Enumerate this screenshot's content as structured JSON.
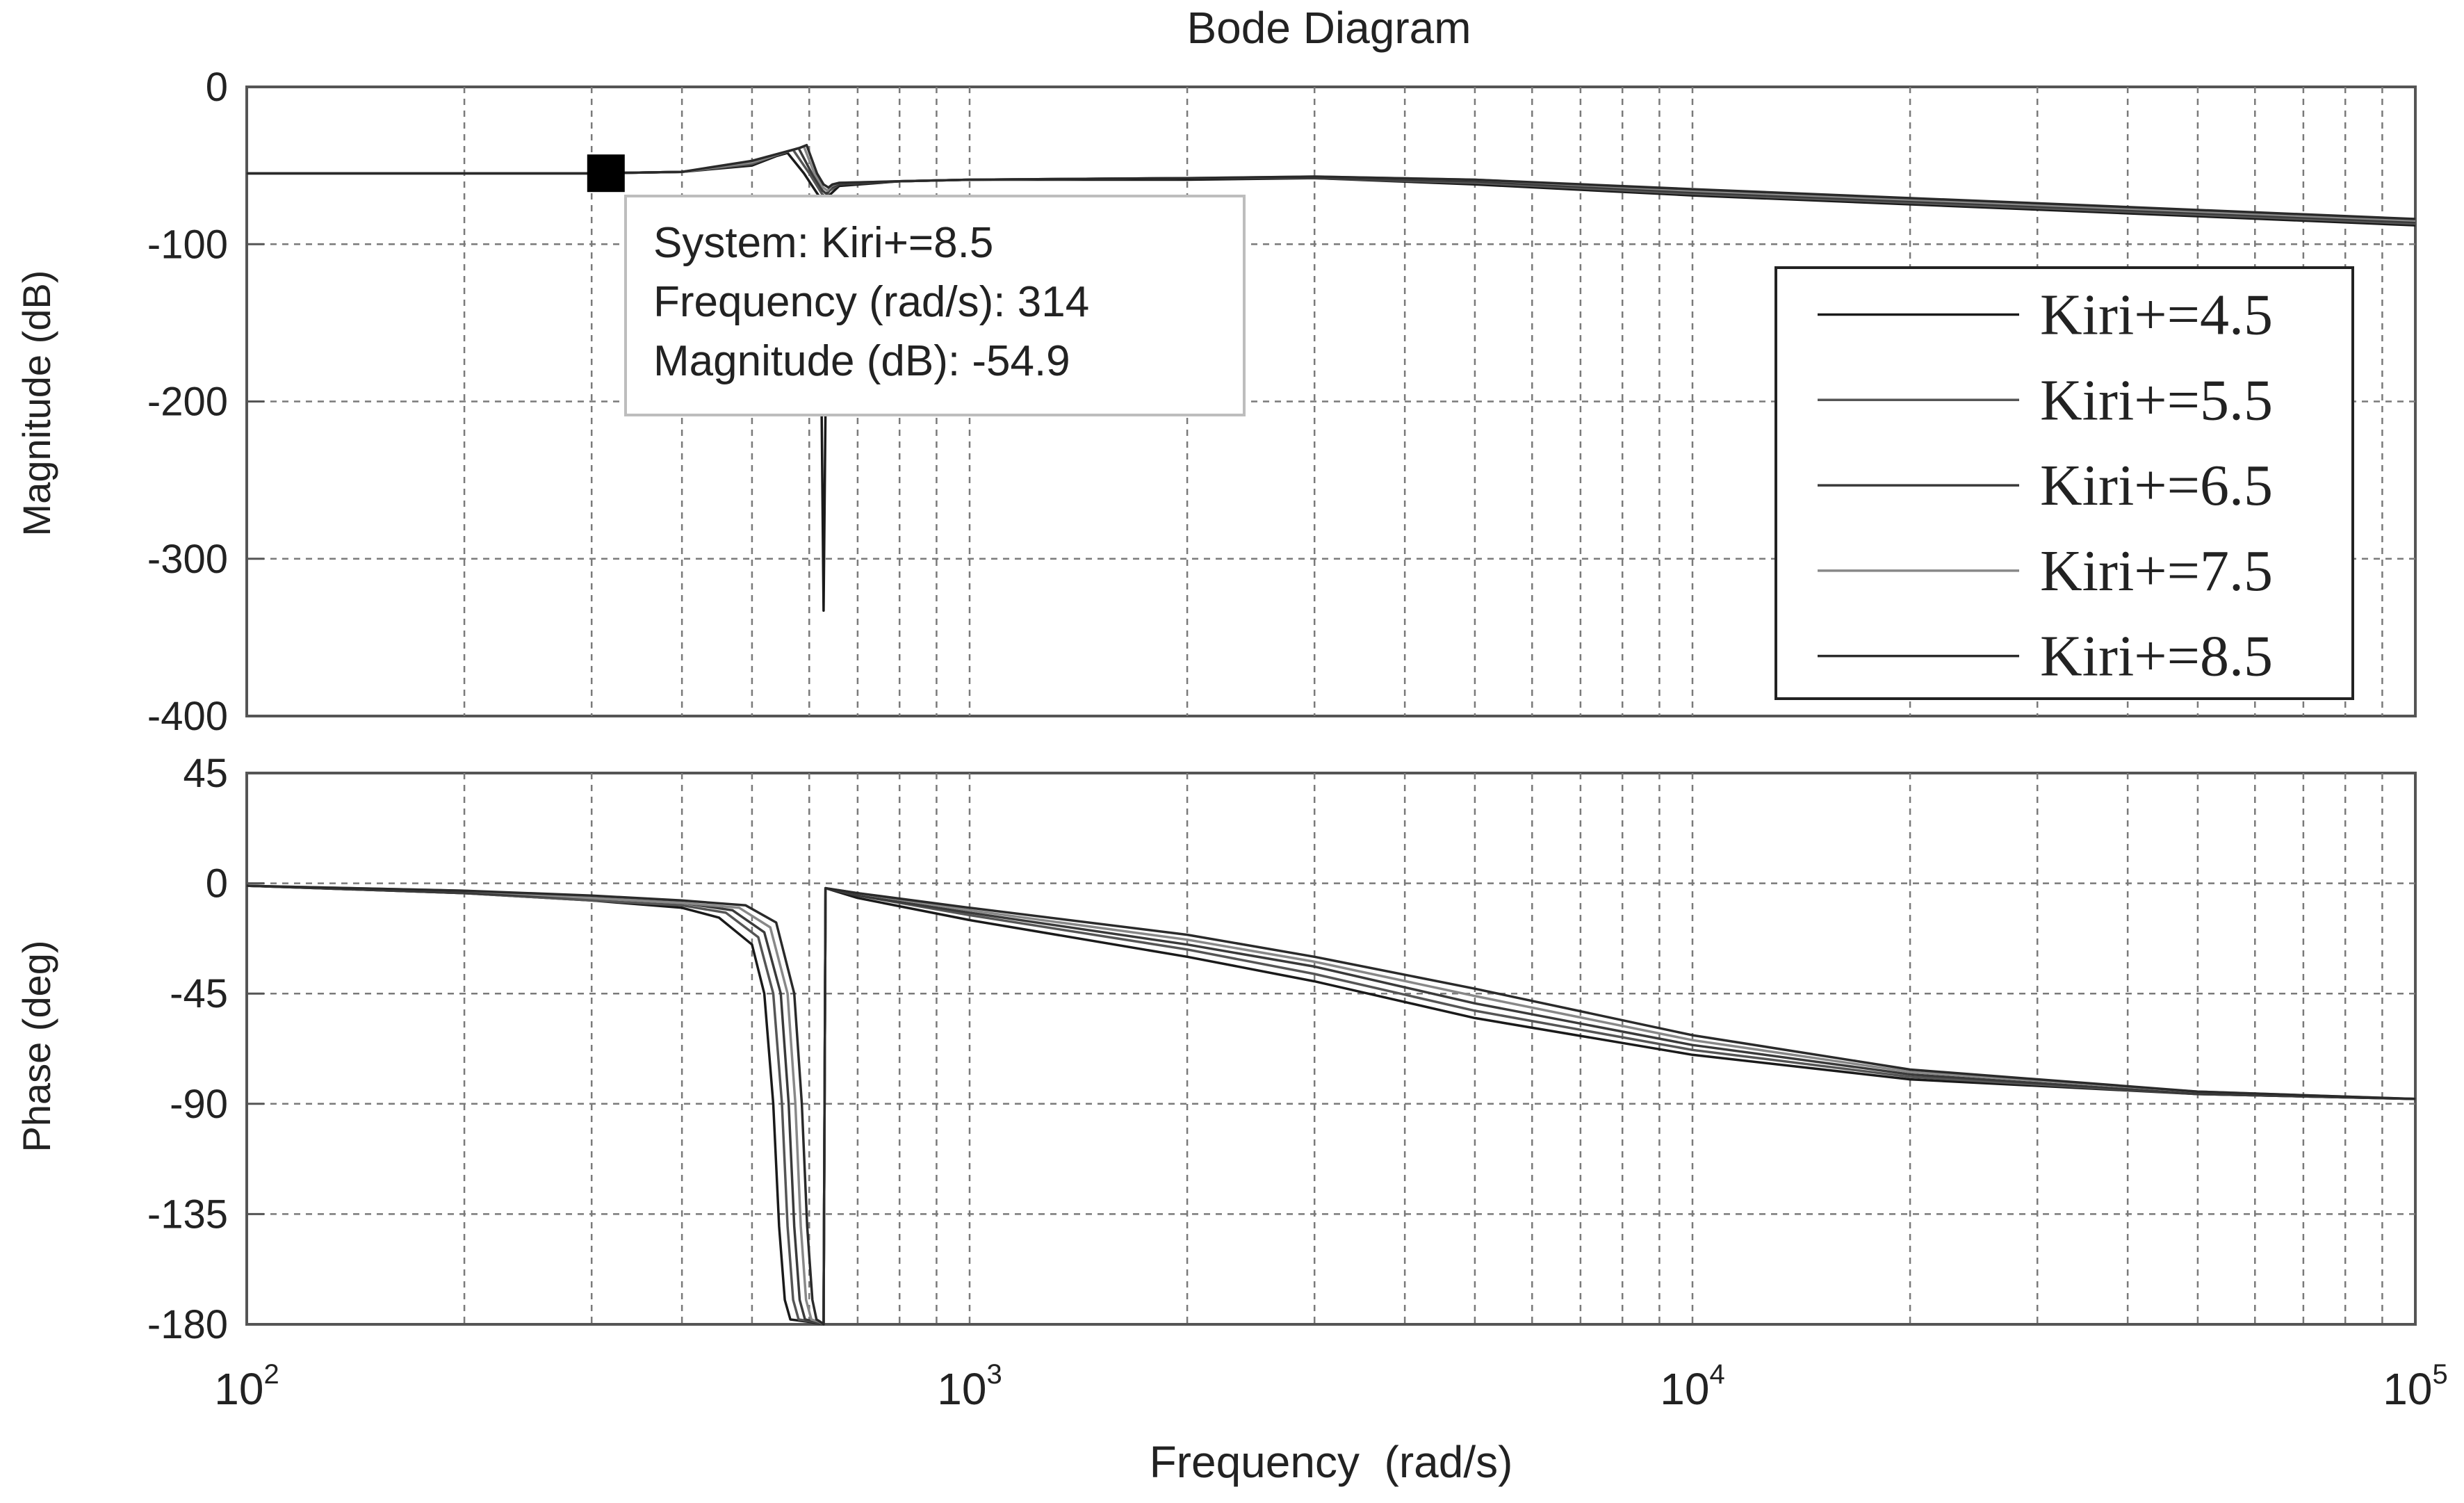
{
  "chart_data": {
    "type": "line",
    "title": "Bode Diagram",
    "xlabel": "Frequency  (rad/s)",
    "xscale": "log",
    "xlim": [
      100,
      100000
    ],
    "x_tick_labels": [
      {
        "base": "10",
        "exp": "2"
      },
      {
        "base": "10",
        "exp": "3"
      },
      {
        "base": "10",
        "exp": "4"
      },
      {
        "base": "10",
        "exp": "5"
      }
    ],
    "grid": true,
    "legend_position": "right",
    "legend": [
      "Kiri+=4.5",
      "Kiri+=5.5",
      "Kiri+=6.5",
      "Kiri+=7.5",
      "Kiri+=8.5"
    ],
    "magnitude": {
      "ylabel": "Magnitude (dB)",
      "ylim": [
        -400,
        0
      ],
      "yticks": [
        "0",
        "-100",
        "-200",
        "-300",
        "-400"
      ],
      "series": [
        {
          "name": "Kiri+=4.5",
          "points": [
            [
              100,
              -55
            ],
            [
              300,
              -55
            ],
            [
              400,
              -54
            ],
            [
              500,
              -50
            ],
            [
              540,
              -44
            ],
            [
              560,
              -42
            ],
            [
              590,
              -55
            ],
            [
              620,
              -70
            ],
            [
              628,
              -333
            ],
            [
              636,
              -70
            ],
            [
              660,
              -63
            ],
            [
              800,
              -60
            ],
            [
              1000,
              -59
            ],
            [
              2000,
              -59
            ],
            [
              3000,
              -58
            ],
            [
              5000,
              -62
            ],
            [
              10000,
              -69
            ],
            [
              30000,
              -78
            ],
            [
              100000,
              -88
            ]
          ]
        },
        {
          "name": "Kiri+=5.5",
          "points": [
            [
              100,
              -55
            ],
            [
              300,
              -55
            ],
            [
              400,
              -54
            ],
            [
              500,
              -49
            ],
            [
              550,
              -42
            ],
            [
              570,
              -40
            ],
            [
              600,
              -55
            ],
            [
              625,
              -68
            ],
            [
              632,
              -70
            ],
            [
              640,
              -66
            ],
            [
              660,
              -62
            ],
            [
              800,
              -60
            ],
            [
              1000,
              -59
            ],
            [
              2000,
              -58
            ],
            [
              3000,
              -58
            ],
            [
              5000,
              -61
            ],
            [
              10000,
              -68
            ],
            [
              30000,
              -77
            ],
            [
              100000,
              -87
            ]
          ]
        },
        {
          "name": "Kiri+=6.5",
          "points": [
            [
              100,
              -55
            ],
            [
              300,
              -55
            ],
            [
              400,
              -54
            ],
            [
              500,
              -48
            ],
            [
              560,
              -41
            ],
            [
              580,
              -39
            ],
            [
              605,
              -55
            ],
            [
              626,
              -66
            ],
            [
              634,
              -68
            ],
            [
              642,
              -64
            ],
            [
              660,
              -62
            ],
            [
              800,
              -60
            ],
            [
              1000,
              -59
            ],
            [
              2000,
              -58
            ],
            [
              3000,
              -58
            ],
            [
              5000,
              -60
            ],
            [
              10000,
              -67
            ],
            [
              30000,
              -76
            ],
            [
              100000,
              -86
            ]
          ]
        },
        {
          "name": "Kiri+=7.5",
          "points": [
            [
              100,
              -55
            ],
            [
              300,
              -55
            ],
            [
              400,
              -54
            ],
            [
              500,
              -48
            ],
            [
              570,
              -40
            ],
            [
              590,
              -38
            ],
            [
              610,
              -55
            ],
            [
              627,
              -64
            ],
            [
              636,
              -66
            ],
            [
              644,
              -63
            ],
            [
              660,
              -61
            ],
            [
              800,
              -60
            ],
            [
              1000,
              -59
            ],
            [
              2000,
              -58
            ],
            [
              3000,
              -57
            ],
            [
              5000,
              -59
            ],
            [
              10000,
              -66
            ],
            [
              30000,
              -75
            ],
            [
              100000,
              -85
            ]
          ]
        },
        {
          "name": "Kiri+=8.5",
          "points": [
            [
              100,
              -55
            ],
            [
              300,
              -55
            ],
            [
              400,
              -54
            ],
            [
              500,
              -47
            ],
            [
              580,
              -39
            ],
            [
              595,
              -37
            ],
            [
              615,
              -55
            ],
            [
              628,
              -62
            ],
            [
              638,
              -64
            ],
            [
              646,
              -62
            ],
            [
              660,
              -61
            ],
            [
              800,
              -60
            ],
            [
              1000,
              -59
            ],
            [
              2000,
              -58
            ],
            [
              3000,
              -57
            ],
            [
              5000,
              -59
            ],
            [
              10000,
              -65
            ],
            [
              30000,
              -74
            ],
            [
              100000,
              -84
            ]
          ]
        }
      ]
    },
    "phase": {
      "ylabel": "Phase (deg)",
      "ylim": [
        -180,
        45
      ],
      "yticks": [
        "45",
        "0",
        "-45",
        "-90",
        "-135",
        "-180"
      ],
      "series": [
        {
          "name": "Kiri+=4.5",
          "points": [
            [
              100,
              -1
            ],
            [
              200,
              -4
            ],
            [
              300,
              -7
            ],
            [
              400,
              -10
            ],
            [
              450,
              -14
            ],
            [
              500,
              -25
            ],
            [
              520,
              -45
            ],
            [
              535,
              -90
            ],
            [
              545,
              -140
            ],
            [
              555,
              -170
            ],
            [
              565,
              -178
            ],
            [
              600,
              -179
            ],
            [
              628,
              -180
            ],
            [
              632,
              -2
            ],
            [
              700,
              -6
            ],
            [
              1000,
              -15
            ],
            [
              2000,
              -30
            ],
            [
              3000,
              -40
            ],
            [
              5000,
              -55
            ],
            [
              10000,
              -70
            ],
            [
              20000,
              -80
            ],
            [
              50000,
              -86
            ],
            [
              100000,
              -88
            ]
          ]
        },
        {
          "name": "Kiri+=5.5",
          "points": [
            [
              100,
              -1
            ],
            [
              200,
              -4
            ],
            [
              300,
              -7
            ],
            [
              400,
              -9
            ],
            [
              460,
              -12
            ],
            [
              510,
              -22
            ],
            [
              535,
              -45
            ],
            [
              550,
              -90
            ],
            [
              560,
              -140
            ],
            [
              570,
              -170
            ],
            [
              580,
              -178
            ],
            [
              610,
              -179
            ],
            [
              628,
              -180
            ],
            [
              632,
              -2
            ],
            [
              700,
              -5
            ],
            [
              1000,
              -13
            ],
            [
              2000,
              -27
            ],
            [
              3000,
              -37
            ],
            [
              5000,
              -52
            ],
            [
              10000,
              -68
            ],
            [
              20000,
              -79
            ],
            [
              50000,
              -86
            ],
            [
              100000,
              -88
            ]
          ]
        },
        {
          "name": "Kiri+=6.5",
          "points": [
            [
              100,
              -1
            ],
            [
              200,
              -4
            ],
            [
              300,
              -6
            ],
            [
              400,
              -8
            ],
            [
              470,
              -11
            ],
            [
              520,
              -20
            ],
            [
              548,
              -45
            ],
            [
              562,
              -90
            ],
            [
              572,
              -140
            ],
            [
              582,
              -170
            ],
            [
              592,
              -178
            ],
            [
              615,
              -179
            ],
            [
              628,
              -180
            ],
            [
              632,
              -2
            ],
            [
              700,
              -5
            ],
            [
              1000,
              -12
            ],
            [
              2000,
              -25
            ],
            [
              3000,
              -34
            ],
            [
              5000,
              -49
            ],
            [
              10000,
              -66
            ],
            [
              20000,
              -78
            ],
            [
              50000,
              -86
            ],
            [
              100000,
              -88
            ]
          ]
        },
        {
          "name": "Kiri+=7.5",
          "points": [
            [
              100,
              -1
            ],
            [
              200,
              -3
            ],
            [
              300,
              -6
            ],
            [
              400,
              -8
            ],
            [
              480,
              -10
            ],
            [
              530,
              -18
            ],
            [
              560,
              -45
            ],
            [
              574,
              -90
            ],
            [
              584,
              -140
            ],
            [
              594,
              -170
            ],
            [
              604,
              -178
            ],
            [
              620,
              -179
            ],
            [
              628,
              -180
            ],
            [
              632,
              -2
            ],
            [
              700,
              -4
            ],
            [
              1000,
              -11
            ],
            [
              2000,
              -23
            ],
            [
              3000,
              -32
            ],
            [
              5000,
              -46
            ],
            [
              10000,
              -64
            ],
            [
              20000,
              -77
            ],
            [
              50000,
              -85
            ],
            [
              100000,
              -88
            ]
          ]
        },
        {
          "name": "Kiri+=8.5",
          "points": [
            [
              100,
              -1
            ],
            [
              200,
              -3
            ],
            [
              300,
              -5
            ],
            [
              400,
              -7
            ],
            [
              490,
              -9
            ],
            [
              540,
              -16
            ],
            [
              572,
              -45
            ],
            [
              586,
              -90
            ],
            [
              596,
              -140
            ],
            [
              606,
              -170
            ],
            [
              614,
              -178
            ],
            [
              622,
              -179
            ],
            [
              628,
              -180
            ],
            [
              632,
              -2
            ],
            [
              700,
              -4
            ],
            [
              1000,
              -10
            ],
            [
              2000,
              -21
            ],
            [
              3000,
              -30
            ],
            [
              5000,
              -43
            ],
            [
              10000,
              -62
            ],
            [
              20000,
              -76
            ],
            [
              50000,
              -85
            ],
            [
              100000,
              -88
            ]
          ]
        }
      ]
    },
    "datatip": {
      "line1": "System: Kiri+=8.5",
      "line2": "Frequency (rad/s): 314",
      "line3": "Magnitude (dB): -54.9",
      "x": 314,
      "y": -54.9
    },
    "colors": {
      "series": [
        "#1a1a1a",
        "#555555",
        "#3a3a3a",
        "#888888",
        "#2a2a2a"
      ],
      "grid": "#7a7a7a",
      "axes": "#555555",
      "text": "#222222",
      "tooltip_border": "#bdbdbd",
      "marker": "#000000"
    }
  }
}
